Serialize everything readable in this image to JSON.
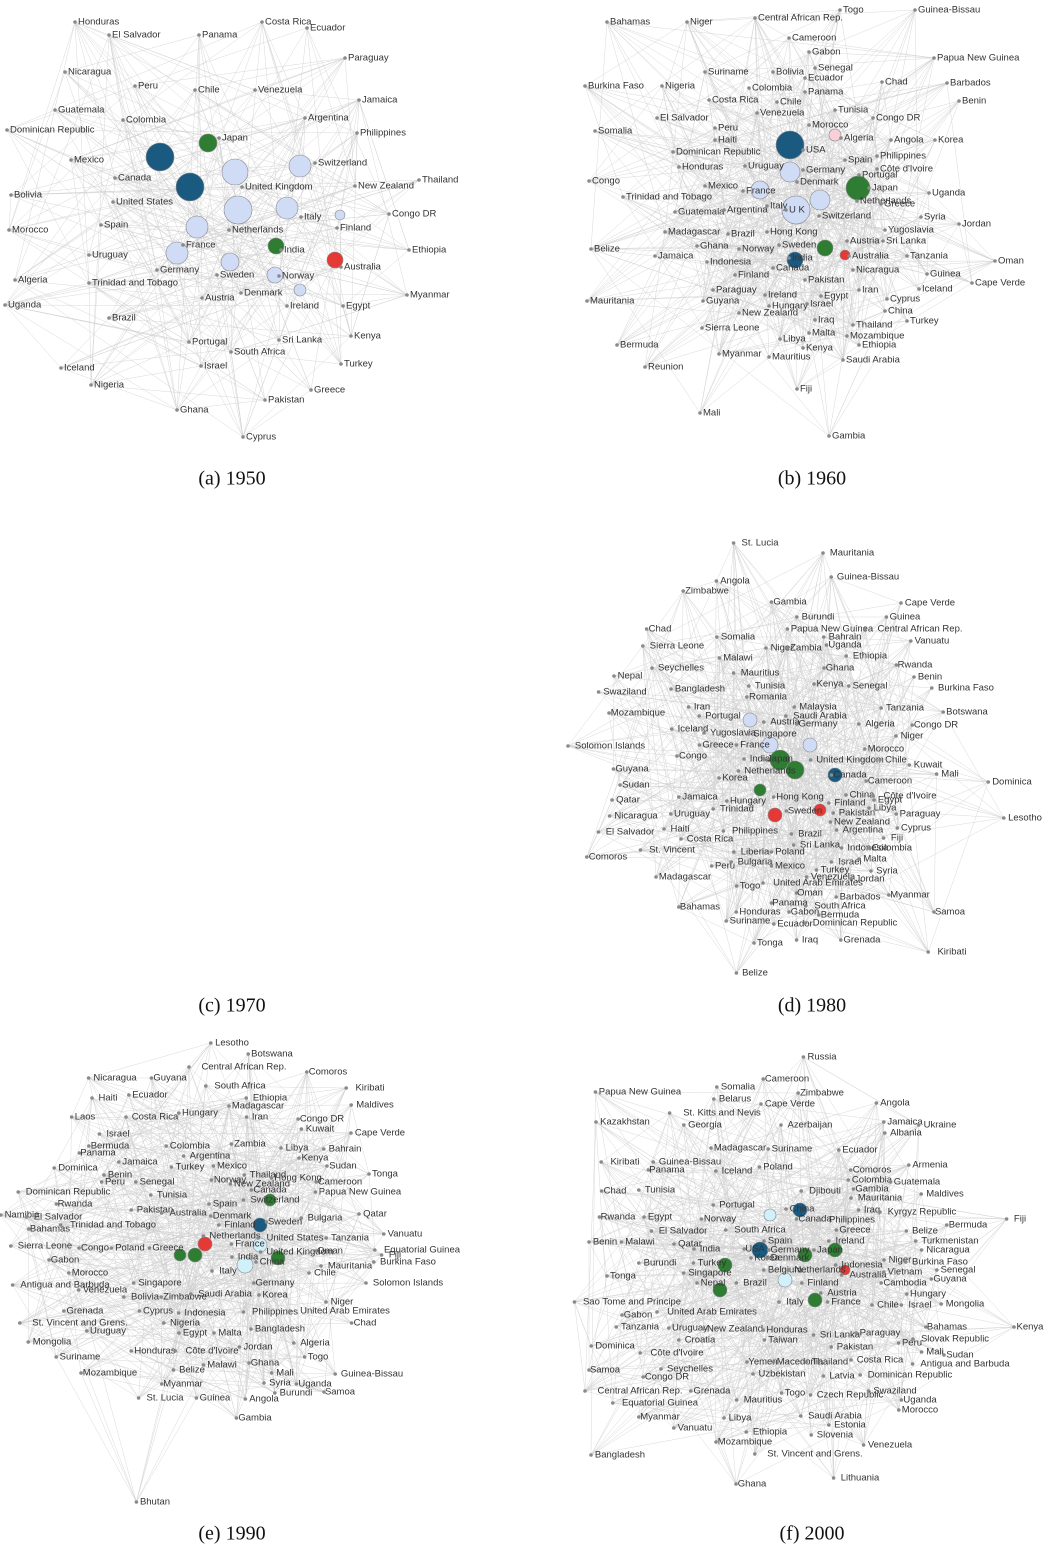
{
  "panels": [
    {
      "caption": "(a) 1950",
      "nodes": [
        "Honduras",
        "El Salvador",
        "Costa Rica",
        "Panama",
        "Ecuador",
        "Paraguay",
        "Nicaragua",
        "Jamaica",
        "Peru",
        "Chile",
        "Venezuela",
        "Guatemala",
        "Colombia",
        "Japan",
        "Argentina",
        "Philippines",
        "Dominican Republic",
        "Mexico",
        "Canada",
        "United Kingdom",
        "Switzerland",
        "Thailand",
        "New Zealand",
        "Bolivia",
        "United States",
        "Congo DR",
        "Morocco",
        "Spain",
        "Netherlands",
        "Italy",
        "Finland",
        "India",
        "Ethiopia",
        "Uruguay",
        "France",
        "Australia",
        "Germany",
        "Sweden",
        "Norway",
        "Algeria",
        "Trinidad and Tobago",
        "Denmark",
        "Myanmar",
        "Uganda",
        "Austria",
        "Ireland",
        "Egypt",
        "Brazil",
        "Kenya",
        "Portugal",
        "Sri Lanka",
        "South Africa",
        "Turkey",
        "Iceland",
        "Israel",
        "Nigeria",
        "Greece",
        "Pakistan",
        "Ghana",
        "Cyprus"
      ]
    },
    {
      "caption": "(b) 1960",
      "nodes": [
        "Bahamas",
        "Niger",
        "Central African Rep.",
        "Togo",
        "Guinea-Bissau",
        "Cameroon",
        "Gabon",
        "Senegal",
        "Papua New Guinea",
        "Suriname",
        "Bolivia",
        "Burkina Faso",
        "Nigeria",
        "Colombia",
        "Ecuador",
        "Panama",
        "Chad",
        "Barbados",
        "Costa Rica",
        "Chile",
        "Benin",
        "Venezuela",
        "Tunisia",
        "El Salvador",
        "Congo DR",
        "Morocco",
        "Peru",
        "Somalia",
        "Algeria",
        "Angola",
        "Korea",
        "Haiti",
        "USA",
        "Dominican Republic",
        "Spain",
        "Philippines",
        "Honduras",
        "Uruguay",
        "Germany",
        "Côte d'Ivoire",
        "Portugal",
        "Congo",
        "Mexico",
        "France",
        "Denmark",
        "Japan",
        "Uganda",
        "Trinidad and Tobago",
        "Italy",
        "Netherlands",
        "Greece",
        "Guatemala",
        "Argentina",
        "U K",
        "Switzerland",
        "Syria",
        "Madagascar",
        "Brazil",
        "Hong Kong",
        "Yugoslavia",
        "Jordan",
        "Belize",
        "Ghana",
        "Norway",
        "Sweden",
        "Austria",
        "Sri Lanka",
        "Jamaica",
        "Indonesia",
        "India",
        "Australia",
        "Tanzania",
        "Oman",
        "Nicaragua",
        "Canada",
        "Finland",
        "Guinea",
        "Cape Verde",
        "Pakistan",
        "Iceland",
        "Paraguay",
        "Ireland",
        "Egypt",
        "Iran",
        "Mauritania",
        "Guyana",
        "Hungary",
        "Israel",
        "Cyprus",
        "China",
        "New Zealand",
        "Iraq",
        "Mozambique",
        "Turkey",
        "Sierra Leone",
        "Malta",
        "Thailand",
        "Bermuda",
        "Libya",
        "Ethiopia",
        "Kenya",
        "Myanmar",
        "Mauritius",
        "Saudi Arabia",
        "Reunion",
        "Fiji",
        "Mali",
        "Gambia"
      ]
    },
    {
      "caption": "(c) 1970",
      "nodes": []
    },
    {
      "caption": "(d) 1980",
      "nodes": [
        "St. Lucia",
        "Mauritania",
        "Angola",
        "Zimbabwe",
        "Guinea-Bissau",
        "Gambia",
        "Cape Verde",
        "Burundi",
        "Guinea",
        "Chad",
        "Somalia",
        "Papua New Guinea",
        "Central African Rep.",
        "Vanuatu",
        "Sierra Leone",
        "Bahrain",
        "Uganda",
        "Malawi",
        "Niger",
        "Zambia",
        "Ethiopia",
        "Nepal",
        "Seychelles",
        "Ghana",
        "Rwanda",
        "Benin",
        "Mauritius",
        "Swaziland",
        "Bangladesh",
        "Tunisia",
        "Kenya",
        "Senegal",
        "Burkina Faso",
        "Romania",
        "Iran",
        "Portugal",
        "Malaysia",
        "Tanzania",
        "Mozambique",
        "Saudi Arabia",
        "Botswana",
        "Algeria",
        "Congo DR",
        "Iceland",
        "Yugoslavia",
        "Austria",
        "Germany",
        "Niger",
        "Greece",
        "France",
        "Singapore",
        "Morocco",
        "Solomon Islands",
        "Congo",
        "India",
        "Japan",
        "United Kingdom",
        "Chile",
        "Kuwait",
        "Guyana",
        "Netherlands",
        "Korea",
        "Canada",
        "Cameroon",
        "Mali",
        "Sudan",
        "Dominica",
        "Qatar",
        "Jamaica",
        "Hong Kong",
        "China",
        "Côte d'Ivoire",
        "Hungary",
        "Finland",
        "Egypt",
        "Libya",
        "Paraguay",
        "Trinidad",
        "Sweden",
        "Pakistan",
        "Nicaragua",
        "Uruguay",
        "Lesotho",
        "El Salvador",
        "Haiti",
        "New Zealand",
        "Argentina",
        "Cyprus",
        "Philippines",
        "Brazil",
        "Costa Rica",
        "Fiji",
        "Indonesia",
        "Sri Lanka",
        "Colombia",
        "Comoros",
        "St. Vincent",
        "Liberia",
        "Poland",
        "Bulgaria",
        "Israel",
        "Malta",
        "Peru",
        "Mexico",
        "Turkey",
        "Venezuela",
        "Syria",
        "Madagascar",
        "Jordan",
        "Togo",
        "United Arab Emirates",
        "Oman",
        "Myanmar",
        "Barbados",
        "Panama",
        "Samoa",
        "Bahamas",
        "Honduras",
        "Gabon",
        "South Africa",
        "Bermuda",
        "Suriname",
        "Ecuador",
        "Dominican Republic",
        "Grenada",
        "Tonga",
        "Iraq",
        "Kiribati",
        "Belize"
      ]
    },
    {
      "caption": "(e) 1990",
      "nodes": [
        "Lesotho",
        "Botswana",
        "Nicaragua",
        "Guyana",
        "Central African Rep.",
        "Comoros",
        "South Africa",
        "Kiribati",
        "Haiti",
        "Ecuador",
        "Ethiopia",
        "Madagascar",
        "Maldives",
        "Laos",
        "Costa Rica",
        "Hungary",
        "Iran",
        "Congo DR",
        "Kuwait",
        "Israel",
        "Cape Verde",
        "Bermuda",
        "Colombia",
        "Zambia",
        "Libya",
        "Bahrain",
        "Panama",
        "Argentina",
        "Kenya",
        "Dominica",
        "Jamaica",
        "Turkey",
        "Mexico",
        "Sudan",
        "Tonga",
        "Benin",
        "Thailand",
        "Peru",
        "Senegal",
        "Norway",
        "New Zealand",
        "Hong Kong",
        "Cameroon",
        "Dominican Republic",
        "Tunisia",
        "Spain",
        "Canada",
        "Switzerland",
        "Papua New Guinea",
        "Rwanda",
        "Pakistan",
        "Australia",
        "Denmark",
        "Bulgaria",
        "Qatar",
        "Namibia",
        "El Salvador",
        "Trinidad and Tobago",
        "Finland",
        "Sweden",
        "Vanuatu",
        "Bahamas",
        "Netherlands",
        "France",
        "United States",
        "Tanzania",
        "Fiji",
        "Sierra Leone",
        "Congo",
        "Poland",
        "Greece",
        "India",
        "China",
        "United Kingdom",
        "Oman",
        "Equatorial Guinea",
        "Burkina Faso",
        "Gabon",
        "Mauritania",
        "Morocco",
        "Italy",
        "Chile",
        "Antigua and Barbuda",
        "Singapore",
        "Germany",
        "Solomon Islands",
        "Venezuela",
        "Bolivia",
        "Zimbabwe",
        "Saudi Arabia",
        "Korea",
        "Cyprus",
        "Indonesia",
        "Philippines",
        "United Arab Emirates",
        "Niger",
        "Grenada",
        "Nigeria",
        "Chad",
        "St. Vincent and Grens.",
        "Uruguay",
        "Egypt",
        "Malta",
        "Bangladesh",
        "Jordan",
        "Algeria",
        "Mongolia",
        "Honduras",
        "Côte d'Ivoire",
        "Suriname",
        "Ghana",
        "Togo",
        "Malawi",
        "Mozambique",
        "Belize",
        "Mali",
        "Guinea-Bissau",
        "Myanmar",
        "Syria",
        "Uganda",
        "Burundi",
        "Samoa",
        "St. Lucia",
        "Guinea",
        "Angola",
        "Gambia",
        "Bhutan"
      ]
    },
    {
      "caption": "(f) 2000",
      "nodes": [
        "Russia",
        "Somalia",
        "Cameroon",
        "Papua New Guinea",
        "Belarus",
        "Zimbabwe",
        "Angola",
        "St. Kitts and Nevis",
        "Cape Verde",
        "Kazakhstan",
        "Georgia",
        "Azerbaijan",
        "Jamaica",
        "Albania",
        "Ukraine",
        "Madagascar",
        "Suriname",
        "Ecuador",
        "Kiribati",
        "Panama",
        "Guinea-Bissau",
        "Iceland",
        "Poland",
        "Armenia",
        "Comoros",
        "Colombia",
        "Gambia",
        "Guatemala",
        "Chad",
        "Tunisia",
        "Djibouti",
        "Mauritania",
        "Maldives",
        "Portugal",
        "China",
        "Iraq",
        "Kyrgyz Republic",
        "Rwanda",
        "Egypt",
        "Norway",
        "Canada",
        "Philippines",
        "Bermuda",
        "Fiji",
        "El Salvador",
        "South Africa",
        "Greece",
        "Ireland",
        "Belize",
        "Qatar",
        "Spain",
        "Turkmenistan",
        "Benin",
        "Malawi",
        "India",
        "USA",
        "Germany",
        "Japan",
        "Nicaragua",
        "Korea",
        "Denmark",
        "Niger",
        "Burkina Faso",
        "Burundi",
        "Turkey",
        "Belgium",
        "Netherlands",
        "Indonesia",
        "Senegal",
        "Tonga",
        "Singapore",
        "Australia",
        "Vietnam",
        "Guyana",
        "Nepal",
        "Brazil",
        "Cambodia",
        "Finland",
        "Hungary",
        "Mongolia",
        "Italy",
        "France",
        "Chile",
        "Israel",
        "Sao Tome and Principe",
        "Austria",
        "Gabon",
        "United Arab Emirates",
        "Tanzania",
        "Uruguay",
        "New Zealand",
        "Honduras",
        "Sri Lanka",
        "Paraguay",
        "Bahamas",
        "Slovak Republic",
        "Kenya",
        "Croatia",
        "Taiwan",
        "Pakistan",
        "Peru",
        "Dominica",
        "Côte d'Ivoire",
        "Mali",
        "Sudan",
        "Antigua and Barbuda",
        "Costa Rica",
        "Yemen",
        "Macedonia",
        "Thailand",
        "Dominican Republic",
        "Seychelles",
        "Samoa",
        "Congo DR",
        "Uzbekistan",
        "Latvia",
        "Swaziland",
        "Uganda",
        "Central African Rep.",
        "Grenada",
        "Togo",
        "Czech Republic",
        "Mauritius",
        "Morocco",
        "Equatorial Guinea",
        "Saudi Arabia",
        "Myanmar",
        "Libya",
        "Estonia",
        "Slovenia",
        "Vanuatu",
        "Ethiopia",
        "Mozambique",
        "Venezuela",
        "St. Vincent and Grens.",
        "Bangladesh",
        "Lithuania",
        "Ghana"
      ]
    }
  ]
}
